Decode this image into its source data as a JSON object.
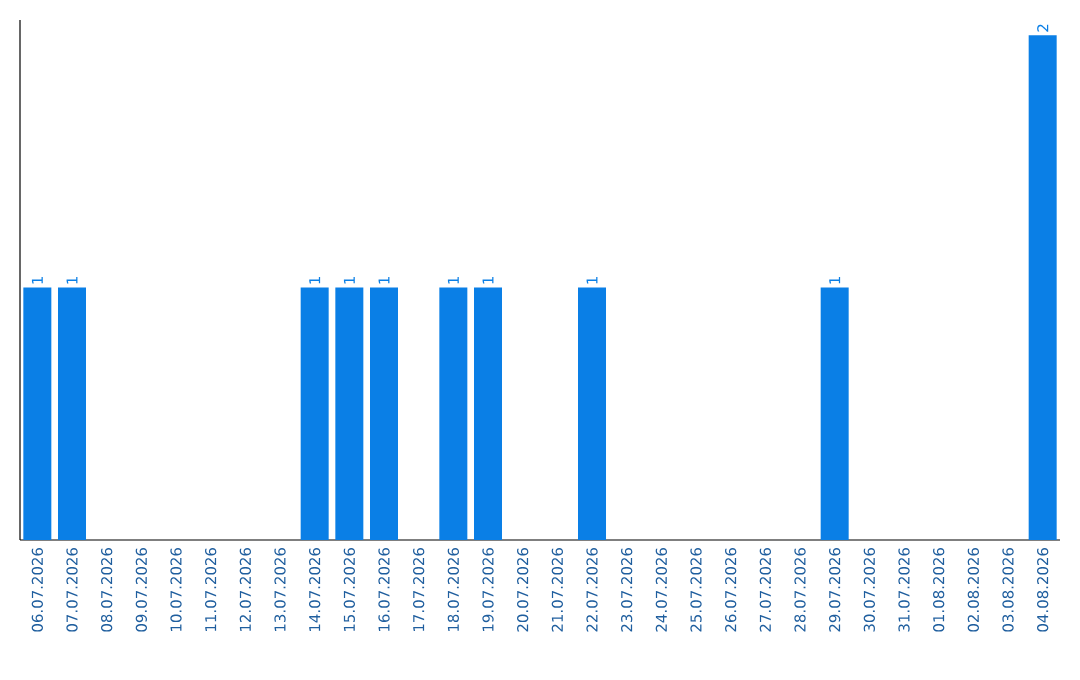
{
  "chart_data": {
    "type": "bar",
    "categories": [
      "06.07.2026",
      "07.07.2026",
      "08.07.2026",
      "09.07.2026",
      "10.07.2026",
      "11.07.2026",
      "12.07.2026",
      "13.07.2026",
      "14.07.2026",
      "15.07.2026",
      "16.07.2026",
      "17.07.2026",
      "18.07.2026",
      "19.07.2026",
      "20.07.2026",
      "21.07.2026",
      "22.07.2026",
      "23.07.2026",
      "24.07.2026",
      "25.07.2026",
      "26.07.2026",
      "27.07.2026",
      "28.07.2026",
      "29.07.2026",
      "30.07.2026",
      "31.07.2026",
      "01.08.2026",
      "02.08.2026",
      "03.08.2026",
      "04.08.2026"
    ],
    "values": [
      1,
      1,
      0,
      0,
      0,
      0,
      0,
      0,
      1,
      1,
      1,
      0,
      1,
      1,
      0,
      0,
      1,
      0,
      0,
      0,
      0,
      0,
      0,
      1,
      0,
      0,
      0,
      0,
      0,
      2
    ],
    "value_labels": [
      "1",
      "1",
      null,
      null,
      null,
      null,
      null,
      null,
      "1",
      "1",
      "1",
      null,
      "1",
      "1",
      null,
      null,
      "1",
      null,
      null,
      null,
      null,
      null,
      null,
      "1",
      null,
      null,
      null,
      null,
      null,
      "2"
    ],
    "color": "#0a7fe6",
    "tick_labels": "x"
  }
}
